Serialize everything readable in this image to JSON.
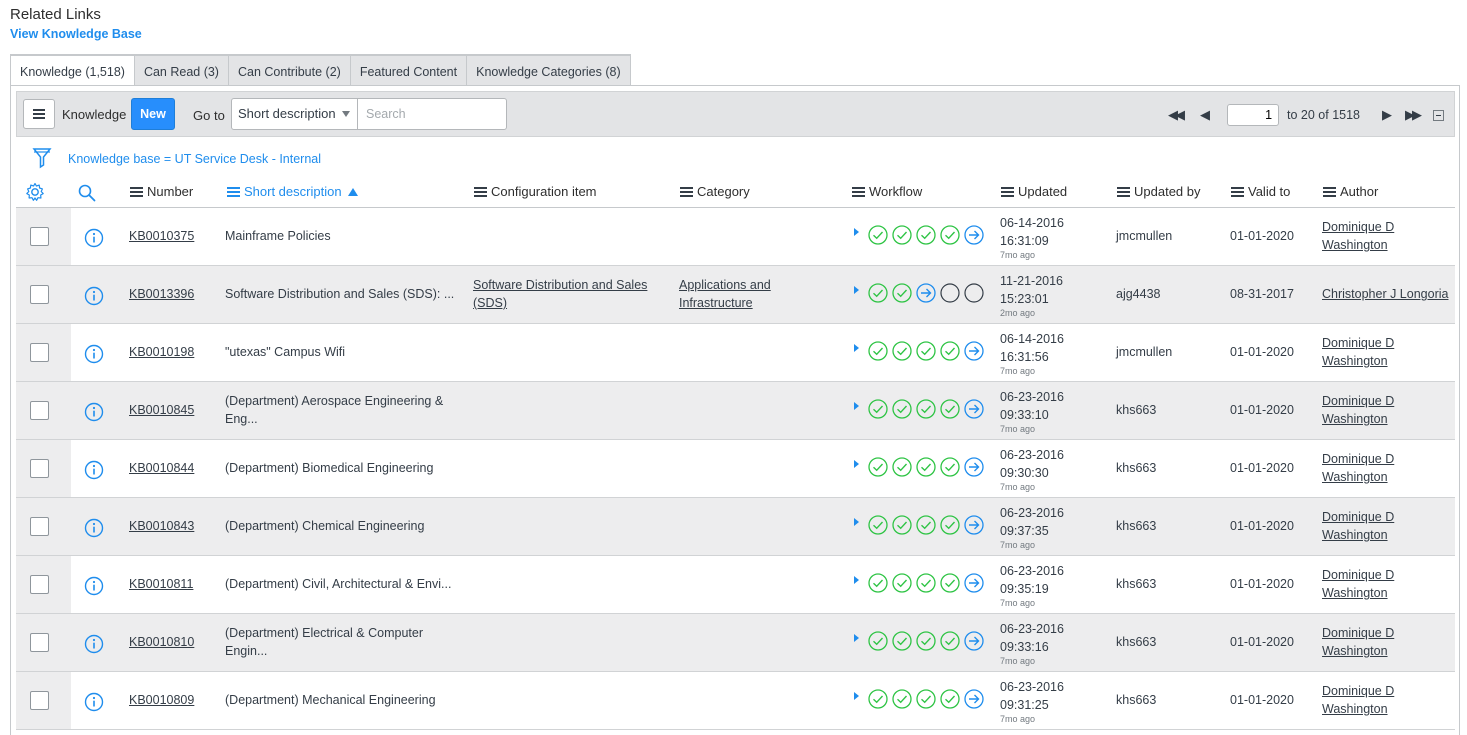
{
  "related": {
    "title": "Related Links",
    "view_kb": "View Knowledge Base"
  },
  "tabs": [
    {
      "label": "Knowledge (1,518)",
      "active": true
    },
    {
      "label": "Can Read (3)"
    },
    {
      "label": "Can Contribute (2)"
    },
    {
      "label": "Featured Content"
    },
    {
      "label": "Knowledge Categories (8)"
    }
  ],
  "toolbar": {
    "list_label": "Knowledge",
    "new_label": "New",
    "goto_label": "Go to",
    "goto_field": "Short description",
    "search_placeholder": "Search",
    "page_value": "1",
    "page_text": "to 20 of 1518"
  },
  "filter": {
    "text": "Knowledge base = UT Service Desk - Internal"
  },
  "columns": {
    "number": "Number",
    "short_description": "Short description",
    "configuration_item": "Configuration item",
    "category": "Category",
    "workflow": "Workflow",
    "updated": "Updated",
    "updated_by": "Updated by",
    "valid_to": "Valid to",
    "author": "Author"
  },
  "colors": {
    "accent": "#278efc",
    "link": "#1f8ded",
    "check_green": "#2fc445",
    "row_alt": "#ededee"
  },
  "rows": [
    {
      "number": "KB0010375",
      "desc1": "Mainframe Policies",
      "desc2": "",
      "ci1": "",
      "ci2": "",
      "cat1": "",
      "cat2": "",
      "workflow": [
        "done",
        "done",
        "done",
        "done",
        "current"
      ],
      "date": "06-14-2016",
      "time": "16:31:09",
      "ago": "7mo ago",
      "by": "jmcmullen",
      "valid": "01-01-2020",
      "author1": "Dominique D",
      "author2": "Washington"
    },
    {
      "number": "KB0013396",
      "desc1": "Software Distribution and Sales (SDS): ...",
      "desc2": "",
      "ci1": "Software Distribution and Sales",
      "ci2": "(SDS)",
      "cat1": "Applications and",
      "cat2": "Infrastructure",
      "workflow": [
        "done",
        "done",
        "current",
        "pending",
        "pending"
      ],
      "date": "11-21-2016",
      "time": "15:23:01",
      "ago": "2mo ago",
      "by": "ajg4438",
      "valid": "08-31-2017",
      "author1": "Christopher J Longoria",
      "author2": ""
    },
    {
      "number": "KB0010198",
      "desc1": "\"utexas\" Campus Wifi",
      "desc2": "",
      "ci1": "",
      "ci2": "",
      "cat1": "",
      "cat2": "",
      "workflow": [
        "done",
        "done",
        "done",
        "done",
        "current"
      ],
      "date": "06-14-2016",
      "time": "16:31:56",
      "ago": "7mo ago",
      "by": "jmcmullen",
      "valid": "01-01-2020",
      "author1": "Dominique D",
      "author2": "Washington"
    },
    {
      "number": "KB0010845",
      "desc1": "(Department) Aerospace Engineering &",
      "desc2": "Eng...",
      "ci1": "",
      "ci2": "",
      "cat1": "",
      "cat2": "",
      "workflow": [
        "done",
        "done",
        "done",
        "done",
        "current"
      ],
      "date": "06-23-2016",
      "time": "09:33:10",
      "ago": "7mo ago",
      "by": "khs663",
      "valid": "01-01-2020",
      "author1": "Dominique D",
      "author2": "Washington"
    },
    {
      "number": "KB0010844",
      "desc1": "(Department) Biomedical Engineering",
      "desc2": "",
      "ci1": "",
      "ci2": "",
      "cat1": "",
      "cat2": "",
      "workflow": [
        "done",
        "done",
        "done",
        "done",
        "current"
      ],
      "date": "06-23-2016",
      "time": "09:30:30",
      "ago": "7mo ago",
      "by": "khs663",
      "valid": "01-01-2020",
      "author1": "Dominique D",
      "author2": "Washington"
    },
    {
      "number": "KB0010843",
      "desc1": "(Department) Chemical Engineering",
      "desc2": "",
      "ci1": "",
      "ci2": "",
      "cat1": "",
      "cat2": "",
      "workflow": [
        "done",
        "done",
        "done",
        "done",
        "current"
      ],
      "date": "06-23-2016",
      "time": "09:37:35",
      "ago": "7mo ago",
      "by": "khs663",
      "valid": "01-01-2020",
      "author1": "Dominique D",
      "author2": "Washington"
    },
    {
      "number": "KB0010811",
      "desc1": "(Department) Civil, Architectural & Envi...",
      "desc2": "",
      "ci1": "",
      "ci2": "",
      "cat1": "",
      "cat2": "",
      "workflow": [
        "done",
        "done",
        "done",
        "done",
        "current"
      ],
      "date": "06-23-2016",
      "time": "09:35:19",
      "ago": "7mo ago",
      "by": "khs663",
      "valid": "01-01-2020",
      "author1": "Dominique D",
      "author2": "Washington"
    },
    {
      "number": "KB0010810",
      "desc1": "(Department) Electrical & Computer",
      "desc2": "Engin...",
      "ci1": "",
      "ci2": "",
      "cat1": "",
      "cat2": "",
      "workflow": [
        "done",
        "done",
        "done",
        "done",
        "current"
      ],
      "date": "06-23-2016",
      "time": "09:33:16",
      "ago": "7mo ago",
      "by": "khs663",
      "valid": "01-01-2020",
      "author1": "Dominique D",
      "author2": "Washington"
    },
    {
      "number": "KB0010809",
      "desc1": "(Department) Mechanical Engineering",
      "desc2": "",
      "ci1": "",
      "ci2": "",
      "cat1": "",
      "cat2": "",
      "workflow": [
        "done",
        "done",
        "done",
        "done",
        "current"
      ],
      "date": "06-23-2016",
      "time": "09:31:25",
      "ago": "7mo ago",
      "by": "khs663",
      "valid": "01-01-2020",
      "author1": "Dominique D",
      "author2": "Washington"
    }
  ]
}
